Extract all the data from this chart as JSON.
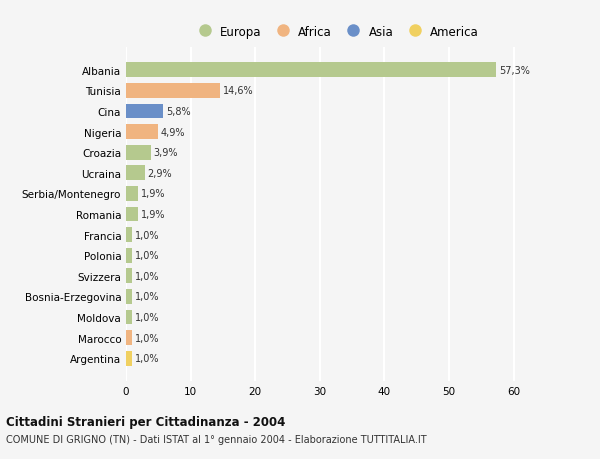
{
  "countries": [
    "Albania",
    "Tunisia",
    "Cina",
    "Nigeria",
    "Croazia",
    "Ucraina",
    "Serbia/Montenegro",
    "Romania",
    "Francia",
    "Polonia",
    "Svizzera",
    "Bosnia-Erzegovina",
    "Moldova",
    "Marocco",
    "Argentina"
  ],
  "values": [
    57.3,
    14.6,
    5.8,
    4.9,
    3.9,
    2.9,
    1.9,
    1.9,
    1.0,
    1.0,
    1.0,
    1.0,
    1.0,
    1.0,
    1.0
  ],
  "labels": [
    "57,3%",
    "14,6%",
    "5,8%",
    "4,9%",
    "3,9%",
    "2,9%",
    "1,9%",
    "1,9%",
    "1,0%",
    "1,0%",
    "1,0%",
    "1,0%",
    "1,0%",
    "1,0%",
    "1,0%"
  ],
  "continents": [
    "Europa",
    "Africa",
    "Asia",
    "Africa",
    "Europa",
    "Europa",
    "Europa",
    "Europa",
    "Europa",
    "Europa",
    "Europa",
    "Europa",
    "Europa",
    "Africa",
    "America"
  ],
  "colors": {
    "Europa": "#b5c98e",
    "Africa": "#f0b480",
    "Asia": "#6a8fc8",
    "America": "#f0d060"
  },
  "legend_order": [
    "Europa",
    "Africa",
    "Asia",
    "America"
  ],
  "legend_colors": [
    "#b5c98e",
    "#f0b480",
    "#6a8fc8",
    "#f0d060"
  ],
  "title": "Cittadini Stranieri per Cittadinanza - 2004",
  "subtitle": "COMUNE DI GRIGNO (TN) - Dati ISTAT al 1° gennaio 2004 - Elaborazione TUTTITALIA.IT",
  "xlim": [
    0,
    65
  ],
  "xticks": [
    0,
    10,
    20,
    30,
    40,
    50,
    60
  ],
  "bg_color": "#f5f5f5",
  "grid_color": "#ffffff",
  "bar_height": 0.72
}
